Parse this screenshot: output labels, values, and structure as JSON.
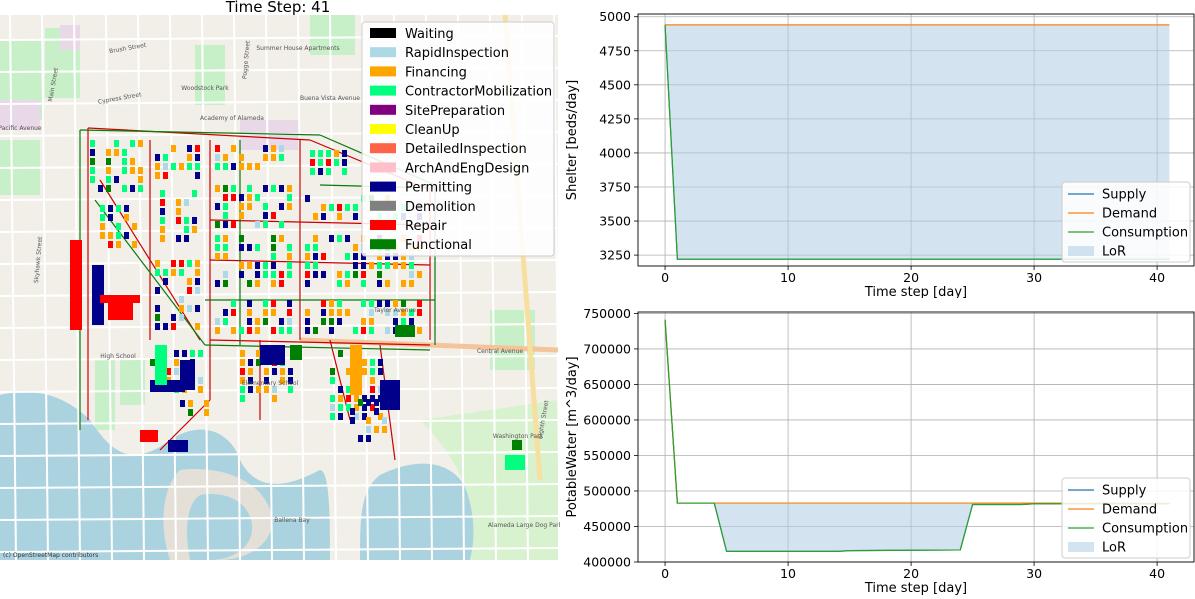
{
  "map": {
    "title": "Time Step: 41",
    "attribution": "(c) OpenStreetMap contributors",
    "legend": [
      {
        "label": "Waiting",
        "color": "#000000"
      },
      {
        "label": "RapidInspection",
        "color": "#add8e6"
      },
      {
        "label": "Financing",
        "color": "#ffa500"
      },
      {
        "label": "ContractorMobilization",
        "color": "#00ff7f"
      },
      {
        "label": "SitePreparation",
        "color": "#800080"
      },
      {
        "label": "CleanUp",
        "color": "#ffff00"
      },
      {
        "label": "DetailedInspection",
        "color": "#ff6347"
      },
      {
        "label": "ArchAndEngDesign",
        "color": "#ffc0cb"
      },
      {
        "label": "Permitting",
        "color": "#00008b"
      },
      {
        "label": "Demolition",
        "color": "#808080"
      },
      {
        "label": "Repair",
        "color": "#ff0000"
      },
      {
        "label": "Functional",
        "color": "#008000"
      }
    ],
    "street_labels": [
      "Main Street",
      "Brush Street",
      "Cypress Street",
      "Pacific Avenue",
      "Buena Vista Avenue",
      "Central Avenue",
      "Taylor Avenue",
      "Eighth Street",
      "Pogge Street",
      "Skyhawk Street",
      "High School",
      "Elementary School",
      "Academy of Alameda",
      "Woodstock Park",
      "Summer House Apartments",
      "Washington Park",
      "Ballena Bay",
      "Alameda Large Dog Park"
    ]
  },
  "chart_data": [
    {
      "type": "area",
      "xlabel": "Time step [day]",
      "ylabel": "Shelter [beds/day]",
      "xlim": [
        -2.2,
        43
      ],
      "ylim": [
        3170,
        5020
      ],
      "xticks": [
        0,
        10,
        20,
        30,
        40
      ],
      "yticks": [
        3250,
        3500,
        3750,
        4000,
        4250,
        4500,
        4750,
        5000
      ],
      "grid": true,
      "legend_position": "lower right",
      "series": [
        {
          "name": "Supply",
          "color": "#1f77b4",
          "x": [
            0,
            1,
            41
          ],
          "values": [
            4940,
            3220,
            3220
          ]
        },
        {
          "name": "Demand",
          "color": "#ff7f0e",
          "x": [
            0,
            1,
            41
          ],
          "values": [
            4940,
            4940,
            4940
          ]
        },
        {
          "name": "Consumption",
          "color": "#2ca02c",
          "x": [
            0,
            1,
            41
          ],
          "values": [
            4940,
            3220,
            3220
          ]
        }
      ],
      "fill": {
        "name": "LoR",
        "color": "#aecde3",
        "between": [
          "Demand",
          "Consumption"
        ]
      }
    },
    {
      "type": "area",
      "xlabel": "Time step [day]",
      "ylabel": "PotableWater [m^3/day]",
      "xlim": [
        -2.2,
        43
      ],
      "ylim": [
        400000,
        752000
      ],
      "xticks": [
        0,
        10,
        20,
        30,
        40
      ],
      "yticks": [
        400000,
        450000,
        500000,
        550000,
        600000,
        650000,
        700000,
        750000
      ],
      "grid": true,
      "legend_position": "lower right",
      "series": [
        {
          "name": "Supply",
          "color": "#1f77b4",
          "x": [
            0,
            1,
            4,
            5,
            14,
            15,
            24,
            25,
            29,
            30,
            41
          ],
          "values": [
            741000,
            483000,
            483000,
            415000,
            415000,
            416000,
            417000,
            481000,
            481000,
            482000,
            482000
          ]
        },
        {
          "name": "Demand",
          "color": "#ff7f0e",
          "x": [
            0,
            1,
            41
          ],
          "values": [
            741000,
            483000,
            483000
          ]
        },
        {
          "name": "Consumption",
          "color": "#2ca02c",
          "x": [
            0,
            1,
            4,
            5,
            14,
            15,
            24,
            25,
            29,
            30,
            41
          ],
          "values": [
            741000,
            483000,
            483000,
            415000,
            415000,
            416000,
            417000,
            481000,
            481000,
            482000,
            482000
          ]
        }
      ],
      "fill": {
        "name": "LoR",
        "color": "#aecde3",
        "between": [
          "Demand",
          "Consumption"
        ]
      }
    }
  ]
}
